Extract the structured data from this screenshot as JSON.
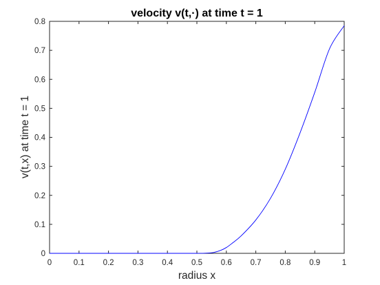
{
  "chart_data": {
    "type": "line",
    "title": "velocity v(t,·) at time  t = 1",
    "xlabel": "radius x",
    "ylabel": "v(t,x) at time t = 1",
    "xlim": [
      0,
      1
    ],
    "ylim": [
      0,
      0.8
    ],
    "grid": false,
    "x_ticks": [
      "0",
      "0.1",
      "0.2",
      "0.3",
      "0.4",
      "0.5",
      "0.6",
      "0.7",
      "0.8",
      "0.9",
      "1"
    ],
    "y_ticks": [
      "0",
      "0.1",
      "0.2",
      "0.3",
      "0.4",
      "0.5",
      "0.6",
      "0.7",
      "0.8"
    ],
    "line_color": "#0000ff",
    "series": [
      {
        "x": [
          0,
          0.1,
          0.2,
          0.3,
          0.4,
          0.5,
          0.55,
          0.58,
          0.6,
          0.62,
          0.65,
          0.7,
          0.75,
          0.8,
          0.85,
          0.9,
          0.95,
          1.0
        ],
        "y": [
          0,
          0,
          0,
          0,
          0,
          0,
          0.002,
          0.01,
          0.02,
          0.035,
          0.06,
          0.115,
          0.19,
          0.29,
          0.415,
          0.555,
          0.705,
          0.785
        ]
      }
    ]
  }
}
